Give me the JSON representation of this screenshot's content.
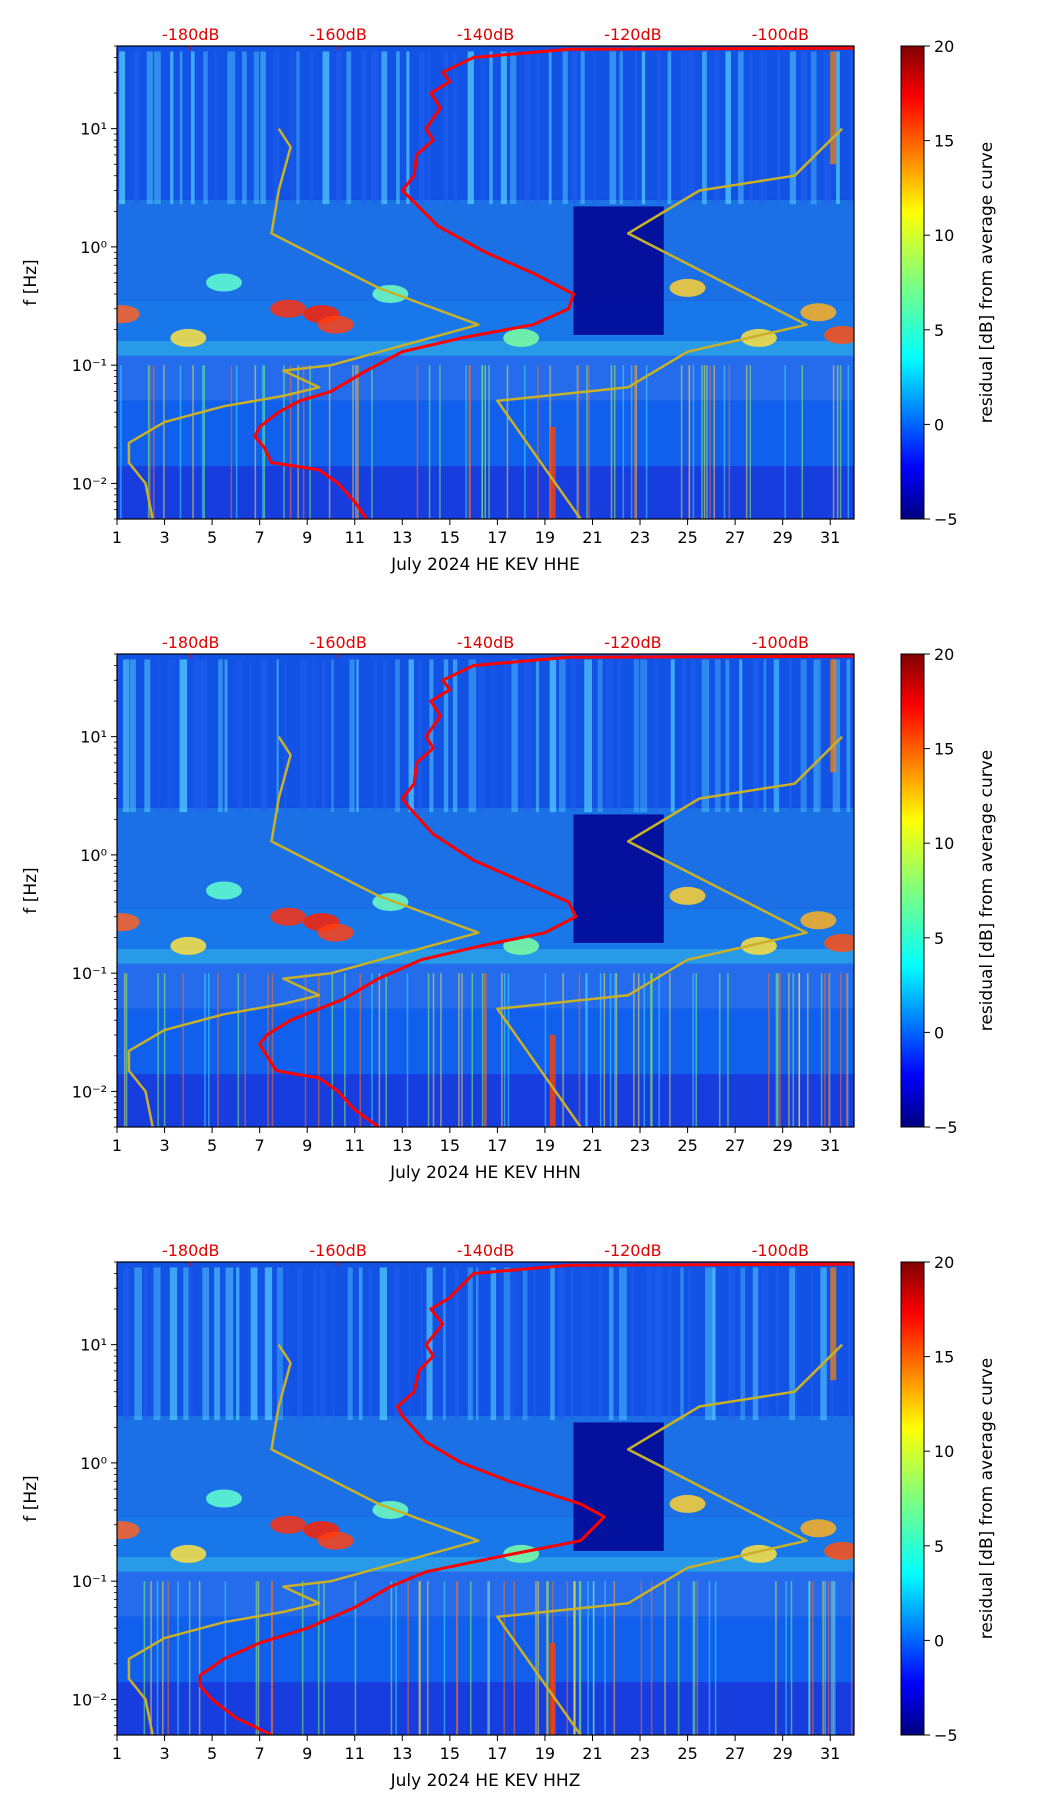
{
  "chart_data": [
    {
      "type": "heatmap",
      "channel": "HHE",
      "xlabel": "July 2024 HE KEV  HHE",
      "ylabel": "f [Hz]",
      "colorbar_label": "residual [dB] from average curve",
      "x_ticks": [
        "1",
        "3",
        "5",
        "7",
        "9",
        "11",
        "13",
        "15",
        "17",
        "19",
        "21",
        "23",
        "25",
        "27",
        "29",
        "31"
      ],
      "xlim": [
        1,
        32
      ],
      "y_scale": "log",
      "y_ticks": [
        "10⁻²",
        "10⁻¹",
        "10⁰",
        "10¹"
      ],
      "y_tick_values": [
        0.01,
        0.1,
        1,
        10
      ],
      "ylim": [
        0.005,
        50
      ],
      "colorbar_ticks": [
        "−5",
        "0",
        "5",
        "10",
        "15",
        "20"
      ],
      "colorbar_range": [
        -5,
        20
      ],
      "db_scale_labels": [
        "-180dB",
        "-160dB",
        "-140dB",
        "-120dB",
        "-100dB"
      ],
      "db_scale_values": [
        -180,
        -160,
        -140,
        -120,
        -100
      ],
      "series": [
        {
          "color": "#ff0000",
          "points": [
            [
              11.5,
              0.005
            ],
            [
              11.0,
              0.007
            ],
            [
              10.3,
              0.01
            ],
            [
              9.5,
              0.013
            ],
            [
              8.5,
              0.014
            ],
            [
              7.5,
              0.015
            ],
            [
              7.2,
              0.02
            ],
            [
              6.8,
              0.025
            ],
            [
              7.0,
              0.03
            ],
            [
              7.8,
              0.04
            ],
            [
              8.7,
              0.05
            ],
            [
              10.0,
              0.06
            ],
            [
              11.5,
              0.09
            ],
            [
              13.0,
              0.13
            ],
            [
              15.5,
              0.17
            ],
            [
              18.5,
              0.22
            ],
            [
              20.0,
              0.3
            ],
            [
              20.2,
              0.4
            ],
            [
              18.5,
              0.6
            ],
            [
              16.5,
              0.9
            ],
            [
              14.5,
              1.5
            ],
            [
              13.4,
              2.5
            ],
            [
              13.0,
              3
            ],
            [
              13.5,
              4
            ],
            [
              13.6,
              6
            ],
            [
              14.3,
              8
            ],
            [
              14.0,
              10
            ],
            [
              14.6,
              15
            ],
            [
              14.2,
              20
            ],
            [
              15.0,
              25
            ],
            [
              14.7,
              30
            ],
            [
              16.0,
              40
            ],
            [
              20.0,
              47
            ],
            [
              32.0,
              48
            ]
          ]
        },
        {
          "color": "#c8b028",
          "points": [
            [
              2.5,
              0.005
            ],
            [
              2.2,
              0.01
            ],
            [
              1.5,
              0.015
            ],
            [
              1.5,
              0.022
            ],
            [
              3.0,
              0.033
            ],
            [
              5.5,
              0.045
            ],
            [
              8.0,
              0.055
            ],
            [
              9.5,
              0.065
            ],
            [
              8.0,
              0.09
            ],
            [
              10.0,
              0.1
            ],
            [
              16.2,
              0.22
            ],
            [
              12.0,
              0.45
            ],
            [
              7.5,
              1.3
            ],
            [
              7.8,
              3
            ],
            [
              8.3,
              7
            ],
            [
              7.8,
              10
            ]
          ]
        },
        {
          "color": "#c8b028",
          "points": [
            [
              20.5,
              0.005
            ],
            [
              17.0,
              0.05
            ],
            [
              22.5,
              0.065
            ],
            [
              25.0,
              0.13
            ],
            [
              30.0,
              0.22
            ],
            [
              22.5,
              1.3
            ],
            [
              25.5,
              3
            ],
            [
              29.5,
              4
            ],
            [
              31.5,
              10
            ]
          ]
        }
      ]
    },
    {
      "type": "heatmap",
      "channel": "HHN",
      "xlabel": "July 2024 HE KEV  HHN",
      "ylabel": "f [Hz]",
      "colorbar_label": "residual [dB] from average curve",
      "x_ticks": [
        "1",
        "3",
        "5",
        "7",
        "9",
        "11",
        "13",
        "15",
        "17",
        "19",
        "21",
        "23",
        "25",
        "27",
        "29",
        "31"
      ],
      "xlim": [
        1,
        32
      ],
      "y_scale": "log",
      "y_ticks": [
        "10⁻²",
        "10⁻¹",
        "10⁰",
        "10¹"
      ],
      "y_tick_values": [
        0.01,
        0.1,
        1,
        10
      ],
      "ylim": [
        0.005,
        50
      ],
      "colorbar_ticks": [
        "−5",
        "0",
        "5",
        "10",
        "15",
        "20"
      ],
      "colorbar_range": [
        -5,
        20
      ],
      "db_scale_labels": [
        "-180dB",
        "-160dB",
        "-140dB",
        "-120dB",
        "-100dB"
      ],
      "db_scale_values": [
        -180,
        -160,
        -140,
        -120,
        -100
      ],
      "series": [
        {
          "color": "#ff0000",
          "points": [
            [
              12.0,
              0.005
            ],
            [
              11.0,
              0.007
            ],
            [
              10.3,
              0.01
            ],
            [
              9.5,
              0.013
            ],
            [
              8.5,
              0.014
            ],
            [
              7.7,
              0.015
            ],
            [
              7.3,
              0.02
            ],
            [
              7.0,
              0.025
            ],
            [
              7.3,
              0.03
            ],
            [
              8.3,
              0.04
            ],
            [
              9.5,
              0.05
            ],
            [
              10.5,
              0.06
            ],
            [
              12.0,
              0.09
            ],
            [
              13.8,
              0.13
            ],
            [
              16.3,
              0.17
            ],
            [
              19.0,
              0.22
            ],
            [
              20.3,
              0.3
            ],
            [
              20.0,
              0.4
            ],
            [
              18.0,
              0.6
            ],
            [
              16.0,
              0.9
            ],
            [
              14.3,
              1.5
            ],
            [
              13.3,
              2.5
            ],
            [
              13.0,
              3
            ],
            [
              13.5,
              4
            ],
            [
              13.6,
              6
            ],
            [
              14.3,
              8
            ],
            [
              14.0,
              10
            ],
            [
              14.6,
              15
            ],
            [
              14.2,
              20
            ],
            [
              15.0,
              25
            ],
            [
              14.7,
              30
            ],
            [
              16.0,
              40
            ],
            [
              20.0,
              47
            ],
            [
              32.0,
              48
            ]
          ]
        },
        {
          "color": "#c8b028",
          "points": [
            [
              2.5,
              0.005
            ],
            [
              2.2,
              0.01
            ],
            [
              1.5,
              0.015
            ],
            [
              1.5,
              0.022
            ],
            [
              3.0,
              0.033
            ],
            [
              5.5,
              0.045
            ],
            [
              8.0,
              0.055
            ],
            [
              9.5,
              0.065
            ],
            [
              8.0,
              0.09
            ],
            [
              10.0,
              0.1
            ],
            [
              16.2,
              0.22
            ],
            [
              12.0,
              0.45
            ],
            [
              7.5,
              1.3
            ],
            [
              7.8,
              3
            ],
            [
              8.3,
              7
            ],
            [
              7.8,
              10
            ]
          ]
        },
        {
          "color": "#c8b028",
          "points": [
            [
              20.5,
              0.005
            ],
            [
              17.0,
              0.05
            ],
            [
              22.5,
              0.065
            ],
            [
              25.0,
              0.13
            ],
            [
              30.0,
              0.22
            ],
            [
              22.5,
              1.3
            ],
            [
              25.5,
              3
            ],
            [
              29.5,
              4
            ],
            [
              31.5,
              10
            ]
          ]
        }
      ]
    },
    {
      "type": "heatmap",
      "channel": "HHZ",
      "xlabel": "July 2024 HE KEV  HHZ",
      "ylabel": "f [Hz]",
      "colorbar_label": "residual [dB] from average curve",
      "x_ticks": [
        "1",
        "3",
        "5",
        "7",
        "9",
        "11",
        "13",
        "15",
        "17",
        "19",
        "21",
        "23",
        "25",
        "27",
        "29",
        "31"
      ],
      "xlim": [
        1,
        32
      ],
      "y_scale": "log",
      "y_ticks": [
        "10⁻²",
        "10⁻¹",
        "10⁰",
        "10¹"
      ],
      "y_tick_values": [
        0.01,
        0.1,
        1,
        10
      ],
      "ylim": [
        0.005,
        50
      ],
      "colorbar_ticks": [
        "−5",
        "0",
        "5",
        "10",
        "15",
        "20"
      ],
      "colorbar_range": [
        -5,
        20
      ],
      "db_scale_labels": [
        "-180dB",
        "-160dB",
        "-140dB",
        "-120dB",
        "-100dB"
      ],
      "db_scale_values": [
        -180,
        -160,
        -140,
        -120,
        -100
      ],
      "series": [
        {
          "color": "#ff0000",
          "points": [
            [
              7.5,
              0.005
            ],
            [
              6.0,
              0.007
            ],
            [
              5.0,
              0.01
            ],
            [
              4.5,
              0.013
            ],
            [
              4.5,
              0.016
            ],
            [
              5.5,
              0.022
            ],
            [
              7.0,
              0.03
            ],
            [
              9.0,
              0.04
            ],
            [
              11.0,
              0.06
            ],
            [
              12.5,
              0.09
            ],
            [
              14.0,
              0.12
            ],
            [
              17.0,
              0.16
            ],
            [
              20.5,
              0.22
            ],
            [
              21.5,
              0.35
            ],
            [
              20.5,
              0.45
            ],
            [
              17.5,
              0.7
            ],
            [
              15.5,
              1.0
            ],
            [
              14.0,
              1.5
            ],
            [
              13.0,
              2.5
            ],
            [
              12.8,
              3
            ],
            [
              13.5,
              4
            ],
            [
              13.7,
              6
            ],
            [
              14.3,
              8
            ],
            [
              14.0,
              10
            ],
            [
              14.7,
              15
            ],
            [
              14.2,
              20
            ],
            [
              15.0,
              25
            ],
            [
              16.0,
              40
            ],
            [
              20.0,
              47
            ],
            [
              32.0,
              48
            ]
          ]
        },
        {
          "color": "#c8b028",
          "points": [
            [
              2.5,
              0.005
            ],
            [
              2.2,
              0.01
            ],
            [
              1.5,
              0.015
            ],
            [
              1.5,
              0.022
            ],
            [
              3.0,
              0.033
            ],
            [
              5.5,
              0.045
            ],
            [
              8.0,
              0.055
            ],
            [
              9.5,
              0.065
            ],
            [
              8.0,
              0.09
            ],
            [
              10.0,
              0.1
            ],
            [
              16.2,
              0.22
            ],
            [
              12.0,
              0.45
            ],
            [
              7.5,
              1.3
            ],
            [
              7.8,
              3
            ],
            [
              8.3,
              7
            ],
            [
              7.8,
              10
            ]
          ]
        },
        {
          "color": "#c8b028",
          "points": [
            [
              20.5,
              0.005
            ],
            [
              17.0,
              0.05
            ],
            [
              22.5,
              0.065
            ],
            [
              25.0,
              0.13
            ],
            [
              30.0,
              0.22
            ],
            [
              22.5,
              1.3
            ],
            [
              25.5,
              3
            ],
            [
              29.5,
              4
            ],
            [
              31.5,
              10
            ]
          ]
        }
      ]
    }
  ]
}
